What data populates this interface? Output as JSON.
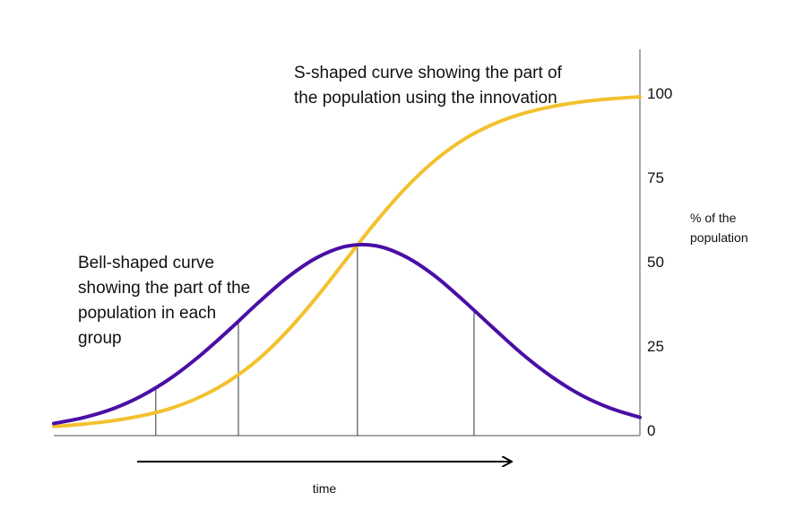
{
  "chart_data": {
    "type": "line",
    "annotations": [
      "S-shaped curve showing the part of the population using the innovation",
      "Bell-shaped curve showing the part of the population in each group"
    ],
    "x_label": "time",
    "y_label": "% of the population",
    "x": [
      0,
      5,
      10,
      15,
      20,
      25,
      30,
      35,
      40,
      45,
      50,
      55,
      60,
      65,
      70,
      75,
      80,
      85,
      90,
      95,
      100
    ],
    "xlim": [
      0,
      100
    ],
    "series": [
      {
        "color": "#f2c12e",
        "values": [
          1.1,
          1.8,
          2.8,
          4.3,
          6.5,
          9.9,
          14.7,
          21.2,
          29.7,
          39.8,
          50.9,
          61.9,
          71.8,
          80.0,
          86.3,
          90.8,
          93.9,
          96.0,
          97.4,
          98.3,
          98.9
        ]
      },
      {
        "color": "#4a0fa6",
        "values": [
          2.0,
          3.7,
          6.3,
          10.2,
          15.5,
          22.2,
          29.9,
          38.0,
          45.5,
          51.3,
          54.6,
          54.7,
          51.5,
          45.8,
          38.3,
          30.3,
          22.5,
          15.8,
          10.4,
          6.5,
          3.8
        ]
      }
    ],
    "dividers": [
      17.4,
      31.5,
      51.8,
      71.7
    ],
    "ylim": [
      -1.6,
      113
    ],
    "yticks": [
      0,
      25,
      50,
      75,
      100
    ],
    "grid": false
  }
}
